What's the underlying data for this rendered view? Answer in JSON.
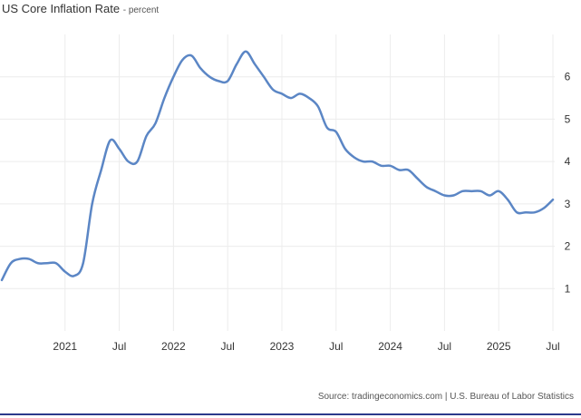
{
  "chart_data": {
    "type": "line",
    "title": "US Core Inflation Rate",
    "subtitle": "percent",
    "source": "Source: tradingeconomics.com | U.S. Bureau of Labor Statistics",
    "y_ticks": [
      1,
      2,
      3,
      4,
      5,
      6
    ],
    "x_ticks": [
      {
        "date": "2021-01",
        "label": "2021"
      },
      {
        "date": "2021-07",
        "label": "Jul"
      },
      {
        "date": "2022-01",
        "label": "2022"
      },
      {
        "date": "2022-07",
        "label": "Jul"
      },
      {
        "date": "2023-01",
        "label": "2023"
      },
      {
        "date": "2023-07",
        "label": "Jul"
      },
      {
        "date": "2024-01",
        "label": "2024"
      },
      {
        "date": "2024-07",
        "label": "Jul"
      },
      {
        "date": "2025-01",
        "label": "2025"
      },
      {
        "date": "2025-07",
        "label": "Jul"
      }
    ],
    "xlim": [
      "2020-06",
      "2025-07"
    ],
    "ylim": [
      0,
      7
    ],
    "grid": true,
    "line_color": "#5b86c5",
    "series": [
      {
        "x": [
          "2020-06",
          "2020-07",
          "2020-08",
          "2020-09",
          "2020-10",
          "2020-11",
          "2020-12",
          "2021-01",
          "2021-02",
          "2021-03",
          "2021-04",
          "2021-05",
          "2021-06",
          "2021-07",
          "2021-08",
          "2021-09",
          "2021-10",
          "2021-11",
          "2021-12",
          "2022-01",
          "2022-02",
          "2022-03",
          "2022-04",
          "2022-05",
          "2022-06",
          "2022-07",
          "2022-08",
          "2022-09",
          "2022-10",
          "2022-11",
          "2022-12",
          "2023-01",
          "2023-02",
          "2023-03",
          "2023-04",
          "2023-05",
          "2023-06",
          "2023-07",
          "2023-08",
          "2023-09",
          "2023-10",
          "2023-11",
          "2023-12",
          "2024-01",
          "2024-02",
          "2024-03",
          "2024-04",
          "2024-05",
          "2024-06",
          "2024-07",
          "2024-08",
          "2024-09",
          "2024-10",
          "2024-11",
          "2024-12",
          "2025-01",
          "2025-02",
          "2025-03",
          "2025-04",
          "2025-05",
          "2025-06",
          "2025-07"
        ],
        "y": [
          1.2,
          1.6,
          1.7,
          1.7,
          1.6,
          1.6,
          1.6,
          1.4,
          1.3,
          1.6,
          3.0,
          3.8,
          4.5,
          4.3,
          4.0,
          4.0,
          4.6,
          4.9,
          5.5,
          6.0,
          6.4,
          6.5,
          6.2,
          6.0,
          5.9,
          5.9,
          6.3,
          6.6,
          6.3,
          6.0,
          5.7,
          5.6,
          5.5,
          5.6,
          5.5,
          5.3,
          4.8,
          4.7,
          4.3,
          4.1,
          4.0,
          4.0,
          3.9,
          3.9,
          3.8,
          3.8,
          3.6,
          3.4,
          3.3,
          3.2,
          3.2,
          3.3,
          3.3,
          3.3,
          3.2,
          3.3,
          3.1,
          2.8,
          2.8,
          2.8,
          2.9,
          3.1
        ]
      }
    ]
  }
}
